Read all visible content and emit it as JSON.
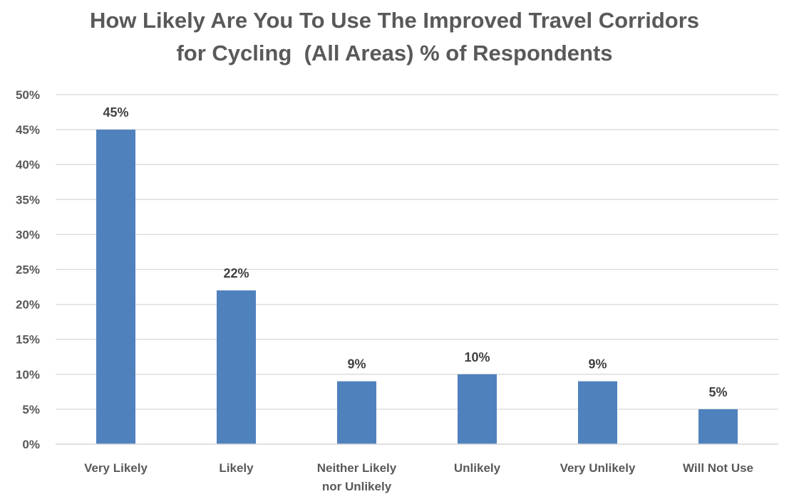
{
  "chart_data": {
    "type": "bar",
    "title_lines": [
      "How Likely Are You To Use The Improved Travel Corridors",
      "for Cycling  (All Areas) % of Respondents"
    ],
    "categories": [
      [
        "Very Likely"
      ],
      [
        "Likely"
      ],
      [
        "Neither Likely",
        "nor Unlikely"
      ],
      [
        "Unlikely"
      ],
      [
        "Very Unlikely"
      ],
      [
        "Will Not Use"
      ]
    ],
    "values": [
      45,
      22,
      9,
      10,
      9,
      5
    ],
    "data_labels": [
      "45%",
      "22%",
      "9%",
      "10%",
      "9%",
      "5%"
    ],
    "ylim": [
      0,
      50
    ],
    "y_ticks": [
      "0%",
      "5%",
      "10%",
      "15%",
      "20%",
      "25%",
      "30%",
      "35%",
      "40%",
      "45%",
      "50%"
    ],
    "grid": true,
    "legend": "none",
    "colors": {
      "bar": "#4f81bd",
      "grid": "#d9d9d9",
      "text": "#595959",
      "label": "#404040"
    }
  }
}
